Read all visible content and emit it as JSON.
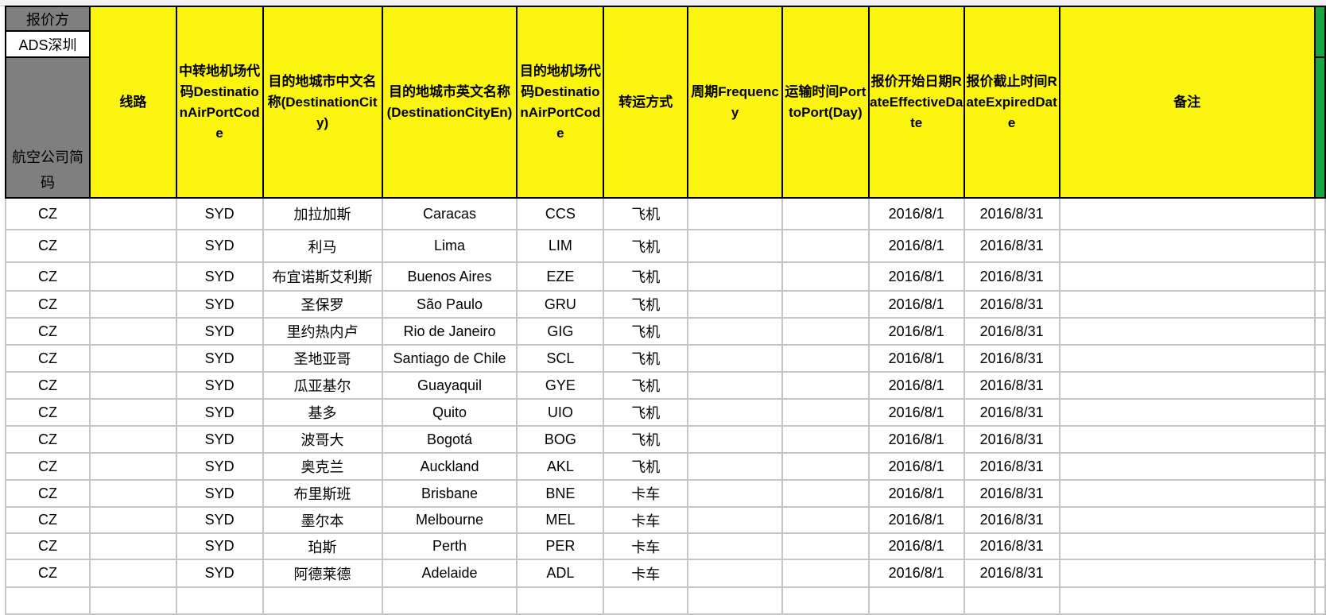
{
  "header": {
    "quoter_label": "报价方",
    "quoter_value": "ADS深圳",
    "airline_code_label": "航空公司简码",
    "columns": [
      "线路",
      "中转地机场代码DestinationAirPortCode",
      "目的地城市中文名称(DestinationCity)",
      "目的地城市英文名称(DestinationCityEn)",
      "目的地机场代码DestinationAirPortCode",
      "转运方式",
      "周期Frequency",
      "运输时间PorttoPort(Day)",
      "报价开始日期RateEffectiveDate",
      "报价截止时间RateExpiredDate",
      "备注"
    ]
  },
  "colors": {
    "header_yellow": "#fbf40f",
    "header_gray": "#7f7f7f",
    "accent_green": "#17a641"
  },
  "rows": [
    [
      "CZ",
      "",
      "SYD",
      "加拉加斯",
      "Caracas",
      "CCS",
      "飞机",
      "",
      "",
      "2016/8/1",
      "2016/8/31",
      ""
    ],
    [
      "CZ",
      "",
      "SYD",
      "利马",
      "Lima",
      "LIM",
      "飞机",
      "",
      "",
      "2016/8/1",
      "2016/8/31",
      ""
    ],
    [
      "CZ",
      "",
      "SYD",
      "布宜诺斯艾利斯",
      "Buenos Aires",
      "EZE",
      "飞机",
      "",
      "",
      "2016/8/1",
      "2016/8/31",
      ""
    ],
    [
      "CZ",
      "",
      "SYD",
      "圣保罗",
      "São Paulo",
      "GRU",
      "飞机",
      "",
      "",
      "2016/8/1",
      "2016/8/31",
      ""
    ],
    [
      "CZ",
      "",
      "SYD",
      "里约热内卢",
      "Rio de Janeiro",
      "GIG",
      "飞机",
      "",
      "",
      "2016/8/1",
      "2016/8/31",
      ""
    ],
    [
      "CZ",
      "",
      "SYD",
      "圣地亚哥",
      "Santiago de Chile",
      "SCL",
      "飞机",
      "",
      "",
      "2016/8/1",
      "2016/8/31",
      ""
    ],
    [
      "CZ",
      "",
      "SYD",
      "瓜亚基尔",
      "Guayaquil",
      "GYE",
      "飞机",
      "",
      "",
      "2016/8/1",
      "2016/8/31",
      ""
    ],
    [
      "CZ",
      "",
      "SYD",
      "基多",
      "Quito",
      "UIO",
      "飞机",
      "",
      "",
      "2016/8/1",
      "2016/8/31",
      ""
    ],
    [
      "CZ",
      "",
      "SYD",
      "波哥大",
      "Bogotá",
      "BOG",
      "飞机",
      "",
      "",
      "2016/8/1",
      "2016/8/31",
      ""
    ],
    [
      "CZ",
      "",
      "SYD",
      "奥克兰",
      "Auckland",
      "AKL",
      "飞机",
      "",
      "",
      "2016/8/1",
      "2016/8/31",
      ""
    ],
    [
      "CZ",
      "",
      "SYD",
      "布里斯班",
      "Brisbane",
      "BNE",
      "卡车",
      "",
      "",
      "2016/8/1",
      "2016/8/31",
      ""
    ],
    [
      "CZ",
      "",
      "SYD",
      "墨尔本",
      "Melbourne",
      "MEL",
      "卡车",
      "",
      "",
      "2016/8/1",
      "2016/8/31",
      ""
    ],
    [
      "CZ",
      "",
      "SYD",
      "珀斯",
      "Perth",
      "PER",
      "卡车",
      "",
      "",
      "2016/8/1",
      "2016/8/31",
      ""
    ],
    [
      "CZ",
      "",
      "SYD",
      "阿德莱德",
      "Adelaide",
      "ADL",
      "卡车",
      "",
      "",
      "2016/8/1",
      "2016/8/31",
      ""
    ]
  ]
}
